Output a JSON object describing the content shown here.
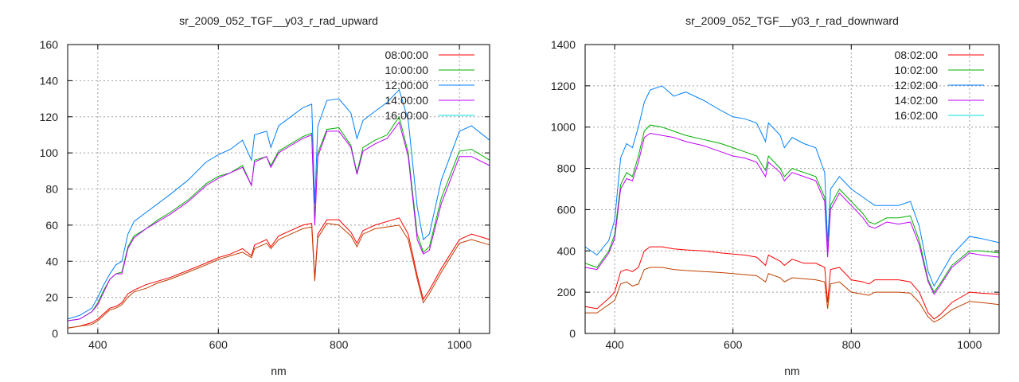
{
  "chart_data": [
    {
      "type": "line",
      "title": "sr_2009_052_TGF__y03_r_rad_upward",
      "xlabel": "nm",
      "ylabel": "",
      "xlim": [
        350,
        1050
      ],
      "ylim": [
        0,
        160
      ],
      "xticks": [
        400,
        600,
        800,
        1000
      ],
      "yticks": [
        0,
        20,
        40,
        60,
        80,
        100,
        120,
        140,
        160
      ],
      "grid": true,
      "legend": "top-right",
      "x": [
        350,
        370,
        390,
        400,
        410,
        420,
        430,
        440,
        450,
        460,
        480,
        500,
        520,
        550,
        580,
        600,
        620,
        640,
        655,
        660,
        680,
        687,
        700,
        720,
        740,
        755,
        760,
        765,
        780,
        800,
        820,
        830,
        840,
        860,
        880,
        900,
        915,
        930,
        940,
        950,
        970,
        1000,
        1020,
        1050
      ],
      "series": [
        {
          "name": "08:00:00",
          "color": "#ff0000",
          "legend_color": "#ff0000",
          "values": [
            3,
            4,
            6,
            8,
            11,
            14,
            15,
            17,
            22,
            24,
            27,
            29,
            31,
            35,
            39,
            42,
            44,
            47,
            43,
            49,
            52,
            48,
            54,
            57,
            60,
            61,
            30,
            55,
            63,
            63,
            56,
            50,
            57,
            60,
            62,
            64,
            55,
            32,
            19,
            24,
            36,
            52,
            55,
            52
          ]
        },
        {
          "name": "10:00:00",
          "color": "#00b000",
          "legend_color": "#00b000",
          "values": [
            7,
            8,
            12,
            17,
            24,
            30,
            33,
            34,
            48,
            54,
            58,
            63,
            67,
            74,
            83,
            87,
            89,
            93,
            82,
            96,
            98,
            93,
            101,
            105,
            109,
            111,
            63,
            100,
            113,
            114,
            104,
            89,
            103,
            107,
            110,
            120,
            100,
            55,
            45,
            48,
            75,
            101,
            102,
            96
          ]
        },
        {
          "name": "12:00:00",
          "color": "#0080ff",
          "legend_color": "#0080ff",
          "values": [
            8,
            10,
            14,
            20,
            27,
            33,
            38,
            40,
            55,
            62,
            67,
            72,
            77,
            85,
            95,
            99,
            102,
            107,
            96,
            110,
            112,
            103,
            115,
            120,
            125,
            127,
            72,
            115,
            129,
            130,
            122,
            108,
            118,
            123,
            128,
            135,
            118,
            70,
            52,
            55,
            85,
            112,
            115,
            107
          ]
        },
        {
          "name": "14:00:00",
          "color": "#c000ff",
          "legend_color": "#c000ff",
          "values": [
            7,
            8,
            12,
            16,
            23,
            30,
            33,
            33,
            47,
            53,
            58,
            62,
            66,
            73,
            82,
            86,
            89,
            92,
            82,
            95,
            98,
            92,
            100,
            104,
            108,
            110,
            60,
            98,
            112,
            112,
            103,
            88,
            101,
            105,
            108,
            117,
            98,
            52,
            44,
            46,
            72,
            98,
            98,
            93
          ]
        },
        {
          "name": "16:00:00",
          "color": "#c04000",
          "legend_color": "#00e0e0",
          "values": [
            3,
            4,
            5,
            7,
            10,
            13,
            14,
            16,
            20,
            23,
            25,
            28,
            30,
            34,
            38,
            41,
            43,
            45,
            42,
            47,
            50,
            47,
            52,
            55,
            58,
            59,
            29,
            53,
            61,
            60,
            54,
            48,
            55,
            58,
            59,
            60,
            52,
            30,
            17,
            22,
            34,
            50,
            52,
            49
          ]
        }
      ]
    },
    {
      "type": "line",
      "title": "sr_2009_052_TGF__y03_r_rad_downward",
      "xlabel": "nm",
      "ylabel": "",
      "xlim": [
        350,
        1050
      ],
      "ylim": [
        0,
        1400
      ],
      "xticks": [
        400,
        600,
        800,
        1000
      ],
      "yticks": [
        0,
        200,
        400,
        600,
        800,
        1000,
        1200,
        1400
      ],
      "grid": true,
      "legend": "top-right",
      "x": [
        350,
        370,
        390,
        400,
        410,
        420,
        430,
        440,
        450,
        460,
        480,
        500,
        520,
        550,
        580,
        600,
        620,
        640,
        655,
        660,
        680,
        687,
        700,
        720,
        740,
        755,
        760,
        765,
        780,
        800,
        820,
        830,
        840,
        860,
        880,
        900,
        915,
        930,
        940,
        950,
        970,
        1000,
        1020,
        1050
      ],
      "series": [
        {
          "name": "08:02:00",
          "color": "#ff0000",
          "legend_color": "#ff0000",
          "values": [
            130,
            120,
            170,
            200,
            300,
            310,
            300,
            320,
            400,
            420,
            420,
            410,
            405,
            400,
            390,
            385,
            380,
            370,
            330,
            380,
            350,
            330,
            360,
            340,
            340,
            320,
            150,
            310,
            320,
            260,
            250,
            240,
            260,
            260,
            260,
            250,
            200,
            100,
            70,
            90,
            150,
            200,
            195,
            190
          ]
        },
        {
          "name": "10:02:00",
          "color": "#00b000",
          "legend_color": "#00b000",
          "values": [
            340,
            320,
            400,
            480,
            720,
            780,
            760,
            860,
            980,
            1010,
            1000,
            980,
            960,
            940,
            920,
            900,
            880,
            860,
            790,
            860,
            800,
            760,
            800,
            780,
            760,
            660,
            400,
            620,
            700,
            640,
            580,
            540,
            530,
            560,
            560,
            570,
            450,
            260,
            200,
            240,
            330,
            400,
            400,
            390
          ]
        },
        {
          "name": "12:02:00",
          "color": "#0080ff",
          "legend_color": "#0080ff",
          "values": [
            420,
            380,
            450,
            550,
            850,
            920,
            900,
            1000,
            1120,
            1180,
            1200,
            1150,
            1170,
            1130,
            1080,
            1050,
            1040,
            1020,
            930,
            1020,
            960,
            900,
            950,
            920,
            900,
            780,
            440,
            700,
            760,
            700,
            660,
            640,
            620,
            620,
            620,
            640,
            520,
            300,
            230,
            280,
            380,
            470,
            460,
            440
          ]
        },
        {
          "name": "14:02:00",
          "color": "#c000ff",
          "legend_color": "#c000ff",
          "values": [
            320,
            310,
            390,
            460,
            700,
            750,
            740,
            830,
            950,
            970,
            960,
            950,
            930,
            910,
            880,
            860,
            850,
            830,
            760,
            830,
            780,
            740,
            780,
            760,
            740,
            640,
            370,
            600,
            680,
            620,
            560,
            520,
            510,
            540,
            530,
            540,
            430,
            250,
            190,
            230,
            320,
            390,
            380,
            370
          ]
        },
        {
          "name": "16:02:00",
          "color": "#c04000",
          "legend_color": "#00e0e0",
          "values": [
            100,
            100,
            140,
            160,
            240,
            250,
            230,
            240,
            310,
            320,
            320,
            310,
            305,
            300,
            295,
            290,
            285,
            280,
            250,
            290,
            270,
            250,
            270,
            265,
            260,
            250,
            120,
            240,
            250,
            200,
            190,
            185,
            200,
            200,
            200,
            195,
            150,
            80,
            55,
            70,
            115,
            155,
            150,
            140
          ]
        }
      ]
    }
  ]
}
